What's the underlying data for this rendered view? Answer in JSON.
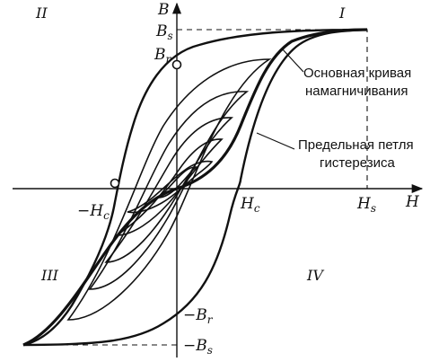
{
  "axes": {
    "x_label": "H",
    "y_label": "B"
  },
  "quadrants": [
    "II",
    "I",
    "III",
    "IV"
  ],
  "markers": {
    "bs": {
      "main": "B",
      "sub": "s"
    },
    "br": {
      "main": "B",
      "sub": "r"
    },
    "neg_br": {
      "main": "−B",
      "sub": "r"
    },
    "neg_bs": {
      "main": "−B",
      "sub": "s"
    },
    "neg_hc": {
      "main": "−H",
      "sub": "c"
    },
    "hc": {
      "main": "H",
      "sub": "c"
    },
    "hs": {
      "main": "H",
      "sub": "s"
    }
  },
  "annotations": {
    "main_curve": [
      "Основная кривая",
      "намагничивания"
    ],
    "limit_loop": [
      "Предельная петля",
      "гистерезиса"
    ]
  },
  "colors": {
    "ink": "#111111",
    "background": "#ffffff"
  }
}
